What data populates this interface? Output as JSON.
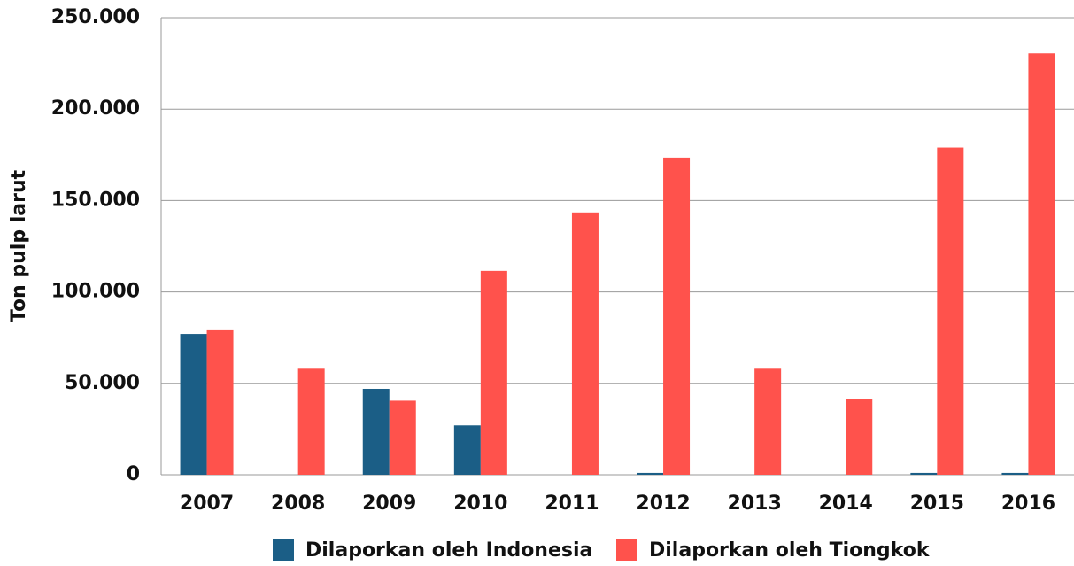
{
  "chart_data": {
    "type": "bar",
    "y_label": "Ton pulp larut",
    "categories": [
      "2007",
      "2008",
      "2009",
      "2010",
      "2011",
      "2012",
      "2013",
      "2014",
      "2015",
      "2016"
    ],
    "series": [
      {
        "name": "Dilaporkan oleh Indonesia",
        "color": "#1b5e86",
        "values": [
          77000,
          0,
          47000,
          27000,
          0,
          1000,
          0,
          0,
          1000,
          1000
        ]
      },
      {
        "name": "Dilaporkan oleh Tiongkok",
        "color": "#ff524c",
        "values": [
          79500,
          58000,
          40500,
          111500,
          143500,
          173500,
          58000,
          41500,
          179000,
          230500
        ]
      }
    ],
    "ylim": [
      0,
      250000
    ],
    "yticks": [
      0,
      {
        "value": 50000,
        "label": "50.000"
      },
      {
        "value": 100000,
        "label": "100.000"
      },
      {
        "value": 150000,
        "label": "150.000"
      },
      {
        "value": 200000,
        "label": "200.000"
      },
      {
        "value": 250000,
        "label": "250.000"
      }
    ],
    "grid": true,
    "legend": "bottom"
  }
}
